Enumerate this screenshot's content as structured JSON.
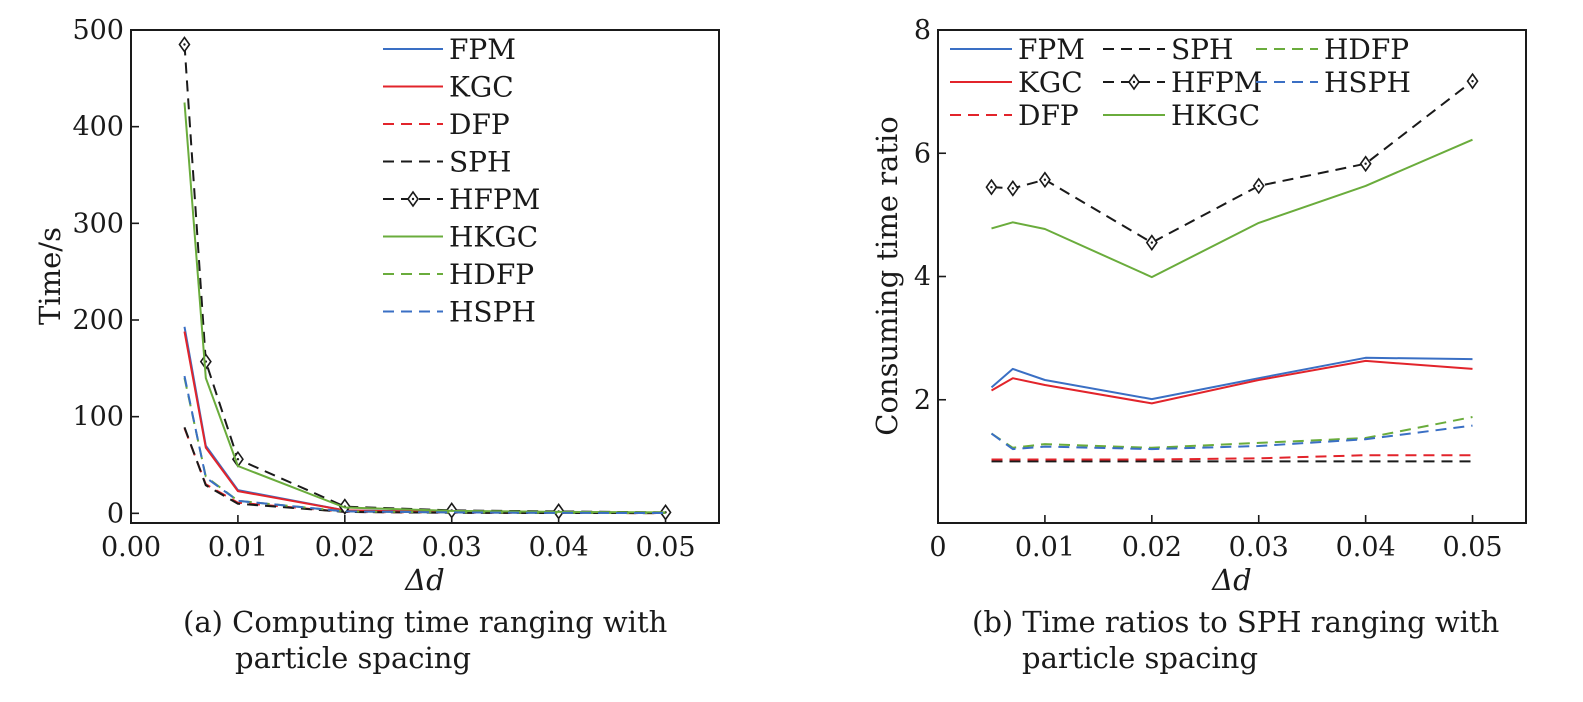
{
  "chart_data": [
    {
      "id": "a",
      "type": "line",
      "caption_line1": "(a) Computing time ranging with",
      "caption_line2": "particle spacing",
      "xlabel": "Δd",
      "ylabel": "Time/s",
      "xlim": [
        0.0,
        0.055
      ],
      "ylim": [
        -10,
        500
      ],
      "x_ticks": [
        0.0,
        0.01,
        0.02,
        0.03,
        0.04,
        0.05
      ],
      "x_tick_labels": [
        "0.00",
        "0.01",
        "0.02",
        "0.03",
        "0.04",
        "0.05"
      ],
      "y_ticks": [
        0,
        100,
        200,
        300,
        400,
        500
      ],
      "y_tick_labels": [
        "0",
        "100",
        "200",
        "300",
        "400",
        "500"
      ],
      "legend_position": "top-right",
      "legend_order": [
        "FPM",
        "KGC",
        "DFP",
        "SPH",
        "HFPM",
        "HKGC",
        "HDFP",
        "HSPH"
      ],
      "x": [
        0.005,
        0.007,
        0.01,
        0.02,
        0.03,
        0.04,
        0.05
      ],
      "series": [
        {
          "name": "FPM",
          "color": "#3a6fc4",
          "dash": "solid",
          "marker": "none",
          "values": [
            193,
            70,
            24,
            3,
            1.5,
            0.8,
            0.5
          ]
        },
        {
          "name": "KGC",
          "color": "#e2242b",
          "dash": "solid",
          "marker": "none",
          "values": [
            188,
            68,
            23,
            3,
            1.4,
            0.8,
            0.5
          ]
        },
        {
          "name": "DFP",
          "color": "#e2242b",
          "dash": "dashed",
          "marker": "none",
          "values": [
            88,
            30,
            11,
            1.5,
            0.7,
            0.3,
            0.2
          ]
        },
        {
          "name": "SPH",
          "color": "#1a1a1a",
          "dash": "dashed",
          "marker": "none",
          "values": [
            89,
            29,
            10,
            1.5,
            0.6,
            0.3,
            0.2
          ]
        },
        {
          "name": "HFPM",
          "color": "#1a1a1a",
          "dash": "dashed",
          "marker": "diamond",
          "values": [
            485,
            157,
            56,
            7,
            3,
            2,
            1
          ]
        },
        {
          "name": "HKGC",
          "color": "#6aac3c",
          "dash": "solid",
          "marker": "none",
          "values": [
            425,
            140,
            49,
            6,
            2.5,
            1.5,
            1
          ]
        },
        {
          "name": "HDFP",
          "color": "#6aac3c",
          "dash": "dashed",
          "marker": "none",
          "values": [
            140,
            38,
            13,
            2,
            1,
            0.5,
            0.3
          ]
        },
        {
          "name": "HSPH",
          "color": "#3a6fc4",
          "dash": "dashed",
          "marker": "none",
          "values": [
            142,
            37,
            13,
            2,
            1,
            0.5,
            0.3
          ]
        }
      ]
    },
    {
      "id": "b",
      "type": "line",
      "caption_line1": "(b) Time ratios to SPH ranging with",
      "caption_line2": "particle spacing",
      "xlabel": "Δd",
      "ylabel": "Consuming time ratio",
      "xlim": [
        0.0,
        0.055
      ],
      "ylim": [
        0,
        8
      ],
      "x_ticks": [
        0.0,
        0.01,
        0.02,
        0.03,
        0.04,
        0.05
      ],
      "x_tick_labels": [
        "0",
        "0.01",
        "0.02",
        "0.03",
        "0.04",
        "0.05"
      ],
      "y_ticks": [
        2,
        4,
        6,
        8
      ],
      "y_tick_labels": [
        "2",
        "4",
        "6",
        "8"
      ],
      "legend_position": "top, three columns",
      "legend_order": [
        "FPM",
        "SPH",
        "HDFP",
        "KGC",
        "HFPM",
        "HSPH",
        "DFP",
        "HKGC"
      ],
      "x": [
        0.005,
        0.007,
        0.01,
        0.02,
        0.03,
        0.04,
        0.05
      ],
      "series": [
        {
          "name": "FPM",
          "color": "#3a6fc4",
          "dash": "solid",
          "marker": "none",
          "values": [
            2.2,
            2.5,
            2.32,
            2.01,
            2.35,
            2.68,
            2.66
          ]
        },
        {
          "name": "SPH",
          "color": "#1a1a1a",
          "dash": "dashed",
          "marker": "none",
          "values": [
            1.0,
            1.0,
            1.0,
            1.0,
            1.0,
            1.0,
            1.0
          ]
        },
        {
          "name": "HDFP",
          "color": "#6aac3c",
          "dash": "dashed",
          "marker": "none",
          "values": [
            1.45,
            1.22,
            1.28,
            1.22,
            1.3,
            1.38,
            1.72
          ]
        },
        {
          "name": "KGC",
          "color": "#e2242b",
          "dash": "solid",
          "marker": "none",
          "values": [
            2.15,
            2.35,
            2.24,
            1.94,
            2.32,
            2.63,
            2.5
          ]
        },
        {
          "name": "HFPM",
          "color": "#1a1a1a",
          "dash": "dashed",
          "marker": "diamond",
          "values": [
            5.45,
            5.43,
            5.57,
            4.55,
            5.47,
            5.83,
            7.17
          ]
        },
        {
          "name": "HSPH",
          "color": "#3a6fc4",
          "dash": "dashed",
          "marker": "none",
          "values": [
            1.45,
            1.2,
            1.24,
            1.2,
            1.25,
            1.36,
            1.58
          ]
        },
        {
          "name": "DFP",
          "color": "#e2242b",
          "dash": "dashed",
          "marker": "none",
          "values": [
            1.03,
            1.03,
            1.03,
            1.03,
            1.05,
            1.1,
            1.1
          ]
        },
        {
          "name": "HKGC",
          "color": "#6aac3c",
          "dash": "solid",
          "marker": "none",
          "values": [
            4.78,
            4.88,
            4.77,
            3.99,
            4.87,
            5.47,
            6.22
          ]
        }
      ]
    }
  ]
}
